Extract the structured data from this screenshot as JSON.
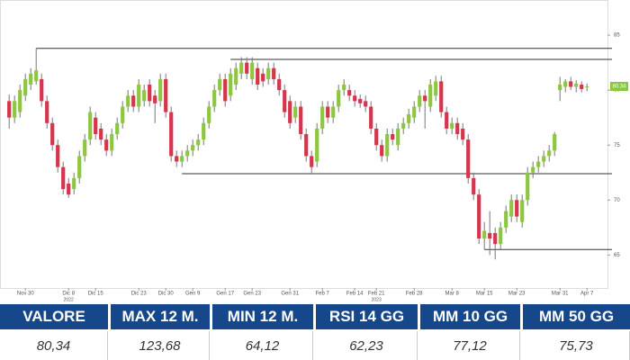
{
  "chart_data": {
    "type": "candlestick",
    "ohlc": [
      [
        79,
        79.6,
        76.5,
        77.5
      ],
      [
        77.5,
        79.5,
        77,
        79
      ],
      [
        78,
        80.5,
        77.5,
        80
      ],
      [
        79.5,
        81.5,
        79,
        81
      ],
      [
        80.5,
        82,
        80,
        81.5
      ],
      [
        80.8,
        83.8,
        80.5,
        81.8
      ],
      [
        81,
        81.5,
        78.5,
        79
      ],
      [
        79,
        79.5,
        76.5,
        77
      ],
      [
        77,
        77.5,
        74.5,
        75
      ],
      [
        75,
        75.5,
        72.5,
        73
      ],
      [
        73,
        73.5,
        70.5,
        71
      ],
      [
        71.5,
        72,
        70.2,
        70.5
      ],
      [
        71,
        72.5,
        70.5,
        72
      ],
      [
        72,
        74.5,
        71.5,
        74
      ],
      [
        74,
        76,
        73.5,
        75.5
      ],
      [
        75.5,
        78.5,
        75,
        78
      ],
      [
        77.5,
        78,
        75.5,
        76
      ],
      [
        76.5,
        77,
        75,
        75.5
      ],
      [
        75.5,
        76,
        74,
        74.5
      ],
      [
        74.5,
        76.5,
        74,
        76
      ],
      [
        76,
        77.5,
        75.5,
        77
      ],
      [
        77,
        79,
        76.5,
        78.5
      ],
      [
        78.5,
        80,
        78,
        79.5
      ],
      [
        79.5,
        80,
        78,
        78.5
      ],
      [
        78.5,
        81,
        78,
        80.5
      ],
      [
        79,
        80.5,
        78.5,
        80
      ],
      [
        80.5,
        81,
        78.5,
        79
      ],
      [
        79.5,
        80,
        77,
        78.8
      ],
      [
        79,
        81.5,
        78.5,
        81
      ],
      [
        81,
        81.5,
        77.5,
        78
      ],
      [
        78,
        78.5,
        73.5,
        74
      ],
      [
        74,
        74.5,
        73,
        73.5
      ],
      [
        73.5,
        74.5,
        73,
        74
      ],
      [
        74,
        75,
        73.5,
        74.5
      ],
      [
        74.5,
        75.5,
        74,
        75
      ],
      [
        75,
        76,
        74.5,
        75.5
      ],
      [
        75.5,
        77.5,
        75,
        77
      ],
      [
        77,
        79,
        76.5,
        78.5
      ],
      [
        78.5,
        80.5,
        78,
        80
      ],
      [
        80,
        81.5,
        79.5,
        81
      ],
      [
        81,
        81.5,
        78.5,
        79
      ],
      [
        79.5,
        82,
        79,
        81.5
      ],
      [
        80.5,
        82.5,
        80,
        82
      ],
      [
        81.5,
        83,
        81,
        82.5
      ],
      [
        82.5,
        83,
        81,
        81.5
      ],
      [
        81,
        83,
        80.5,
        82.5
      ],
      [
        82,
        82.5,
        80,
        80.5
      ],
      [
        81.5,
        82,
        80.3,
        80.8
      ],
      [
        81,
        82.5,
        80.5,
        82
      ],
      [
        82,
        82.5,
        80.5,
        81
      ],
      [
        81,
        81.5,
        79.5,
        80
      ],
      [
        80,
        80.5,
        77.5,
        78
      ],
      [
        79,
        79.5,
        76.5,
        77
      ],
      [
        77.5,
        79,
        77,
        78.5
      ],
      [
        78.5,
        79,
        75.5,
        76
      ],
      [
        76,
        76.5,
        73.5,
        74
      ],
      [
        74,
        74.5,
        72.4,
        73
      ],
      [
        73.5,
        77,
        73,
        76.5
      ],
      [
        76.5,
        79,
        76,
        78.5
      ],
      [
        78.5,
        79,
        77,
        77.5
      ],
      [
        77.5,
        79,
        77,
        78.5
      ],
      [
        78.5,
        80.5,
        78,
        80
      ],
      [
        80,
        81,
        79.5,
        80.5
      ],
      [
        80,
        80.5,
        79,
        79.5
      ],
      [
        79.5,
        80,
        78.5,
        79
      ],
      [
        79.2,
        79.6,
        78.4,
        78.8
      ],
      [
        79,
        79.5,
        78,
        78.5
      ],
      [
        78.5,
        79,
        76,
        76.5
      ],
      [
        76.5,
        77,
        74.5,
        75
      ],
      [
        75,
        75.5,
        73.5,
        74
      ],
      [
        74,
        76.5,
        73.5,
        76
      ],
      [
        76,
        76.5,
        75,
        75.5
      ],
      [
        75,
        77,
        74.5,
        76.5
      ],
      [
        76.5,
        77.5,
        76,
        77
      ],
      [
        77,
        78.3,
        76.5,
        77.8
      ],
      [
        77.5,
        79,
        77,
        78.5
      ],
      [
        78.5,
        80,
        78,
        79.5
      ],
      [
        79.5,
        80,
        76.5,
        79
      ],
      [
        78.5,
        81,
        78,
        80.5
      ],
      [
        79.5,
        81.3,
        79,
        80.8
      ],
      [
        80.8,
        81.3,
        77.5,
        78
      ],
      [
        78,
        78.5,
        76,
        76.5
      ],
      [
        76.5,
        77.5,
        76,
        77
      ],
      [
        77,
        77.5,
        75.5,
        76
      ],
      [
        76.5,
        77,
        75,
        75.5
      ],
      [
        75.5,
        76,
        71.5,
        72
      ],
      [
        72,
        72.5,
        70,
        70.5
      ],
      [
        70.5,
        71,
        66,
        66.5
      ],
      [
        66.5,
        68,
        65.5,
        67.2
      ],
      [
        67,
        69,
        65,
        66.5
      ],
      [
        67,
        67.5,
        64.6,
        66
      ],
      [
        66,
        68,
        65.5,
        67.5
      ],
      [
        67.5,
        69.5,
        67,
        69
      ],
      [
        68.5,
        70.5,
        68,
        70
      ],
      [
        70,
        70.5,
        68,
        68.5
      ],
      [
        68,
        70.5,
        67.5,
        70
      ],
      [
        70,
        73,
        69.5,
        72.5
      ],
      [
        72.5,
        73.5,
        72,
        73
      ],
      [
        73,
        74,
        72.5,
        73.5
      ],
      [
        73.5,
        74.5,
        73,
        74
      ],
      [
        74,
        75,
        73.5,
        74.5
      ],
      [
        74.5,
        76.2,
        74,
        76
      ],
      [
        80,
        81.2,
        79,
        80.5
      ],
      [
        80.3,
        81,
        79.8,
        80.8
      ],
      [
        80.8,
        81.2,
        80,
        80.3
      ],
      [
        80.3,
        80.9,
        79.8,
        80.6
      ],
      [
        80.5,
        80.8,
        79.8,
        80.1
      ],
      [
        80.3,
        80.6,
        79.9,
        80.34
      ]
    ],
    "up_color": "#8dc63f",
    "down_color": "#d7354b",
    "ylim": [
      62,
      88.2
    ],
    "yticks": [
      65,
      70,
      75,
      80,
      85
    ],
    "xlim": [
      -1.7,
      110.8
    ],
    "xticks": [
      {
        "value": 3,
        "label": "Nov 30"
      },
      {
        "value": 11,
        "label": "Dic 8"
      },
      {
        "value": 16,
        "label": "Dic 15"
      },
      {
        "value": 24,
        "label": "Dic 23"
      },
      {
        "value": 29,
        "label": "Dic 30"
      },
      {
        "value": 34,
        "label": "Gen 9"
      },
      {
        "value": 40,
        "label": "Gen 17"
      },
      {
        "value": 45,
        "label": "Gen 23"
      },
      {
        "value": 52,
        "label": "Gen 31"
      },
      {
        "value": 58,
        "label": "Feb 7"
      },
      {
        "value": 64,
        "label": "Feb 14"
      },
      {
        "value": 68,
        "label": "Feb 21"
      },
      {
        "value": 75,
        "label": "Feb 28"
      },
      {
        "value": 82,
        "label": "Mar 8"
      },
      {
        "value": 88,
        "label": "Mar 15"
      },
      {
        "value": 94,
        "label": "Mar 23"
      },
      {
        "value": 102,
        "label": "Mar 31"
      },
      {
        "value": 107,
        "label": "Apr 7"
      }
    ],
    "year_ticks": [
      {
        "value": 11,
        "label": "2022"
      },
      {
        "value": 68,
        "label": "2023"
      }
    ],
    "levels": [
      {
        "value": 83.8,
        "from": 5
      },
      {
        "value": 82.8,
        "from": 41
      },
      {
        "value": 72.4,
        "from": 32
      },
      {
        "value": 65.5,
        "from": 88
      }
    ],
    "last_price_label": "80.34"
  },
  "table": {
    "header": [
      "VALORE",
      "MAX 12 M.",
      "MIN 12 M.",
      "RSI 14 GG",
      "MM 10 GG",
      "MM 50 GG"
    ],
    "rows": [
      [
        "80,34",
        "123,68",
        "64,12",
        "62,23",
        "77,12",
        "75,73"
      ]
    ]
  }
}
